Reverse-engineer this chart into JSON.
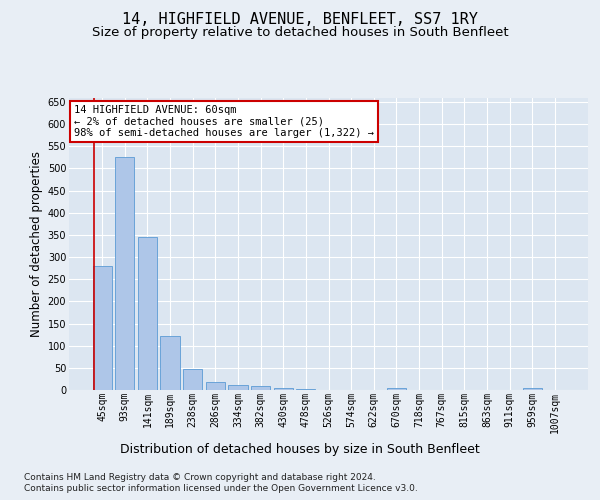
{
  "title": "14, HIGHFIELD AVENUE, BENFLEET, SS7 1RY",
  "subtitle": "Size of property relative to detached houses in South Benfleet",
  "xlabel": "Distribution of detached houses by size in South Benfleet",
  "ylabel": "Number of detached properties",
  "footer_line1": "Contains HM Land Registry data © Crown copyright and database right 2024.",
  "footer_line2": "Contains public sector information licensed under the Open Government Licence v3.0.",
  "categories": [
    "45sqm",
    "93sqm",
    "141sqm",
    "189sqm",
    "238sqm",
    "286sqm",
    "334sqm",
    "382sqm",
    "430sqm",
    "478sqm",
    "526sqm",
    "574sqm",
    "622sqm",
    "670sqm",
    "718sqm",
    "767sqm",
    "815sqm",
    "863sqm",
    "911sqm",
    "959sqm",
    "1007sqm"
  ],
  "values": [
    280,
    525,
    345,
    122,
    47,
    17,
    11,
    8,
    5,
    2,
    0,
    0,
    0,
    5,
    0,
    0,
    0,
    0,
    0,
    5,
    0
  ],
  "bar_color": "#aec6e8",
  "bar_edge_color": "#5b9bd5",
  "annotation_line1": "14 HIGHFIELD AVENUE: 60sqm",
  "annotation_line2": "← 2% of detached houses are smaller (25)",
  "annotation_line3": "98% of semi-detached houses are larger (1,322) →",
  "annotation_box_color": "#ffffff",
  "annotation_box_edge_color": "#cc0000",
  "ylim": [
    0,
    660
  ],
  "yticks": [
    0,
    50,
    100,
    150,
    200,
    250,
    300,
    350,
    400,
    450,
    500,
    550,
    600,
    650
  ],
  "bg_color": "#e8eef5",
  "plot_bg_color": "#dce6f1",
  "grid_color": "#ffffff",
  "title_fontsize": 11,
  "subtitle_fontsize": 9.5,
  "xlabel_fontsize": 9,
  "ylabel_fontsize": 8.5,
  "tick_fontsize": 7,
  "annotation_fontsize": 7.5,
  "footer_fontsize": 6.5
}
